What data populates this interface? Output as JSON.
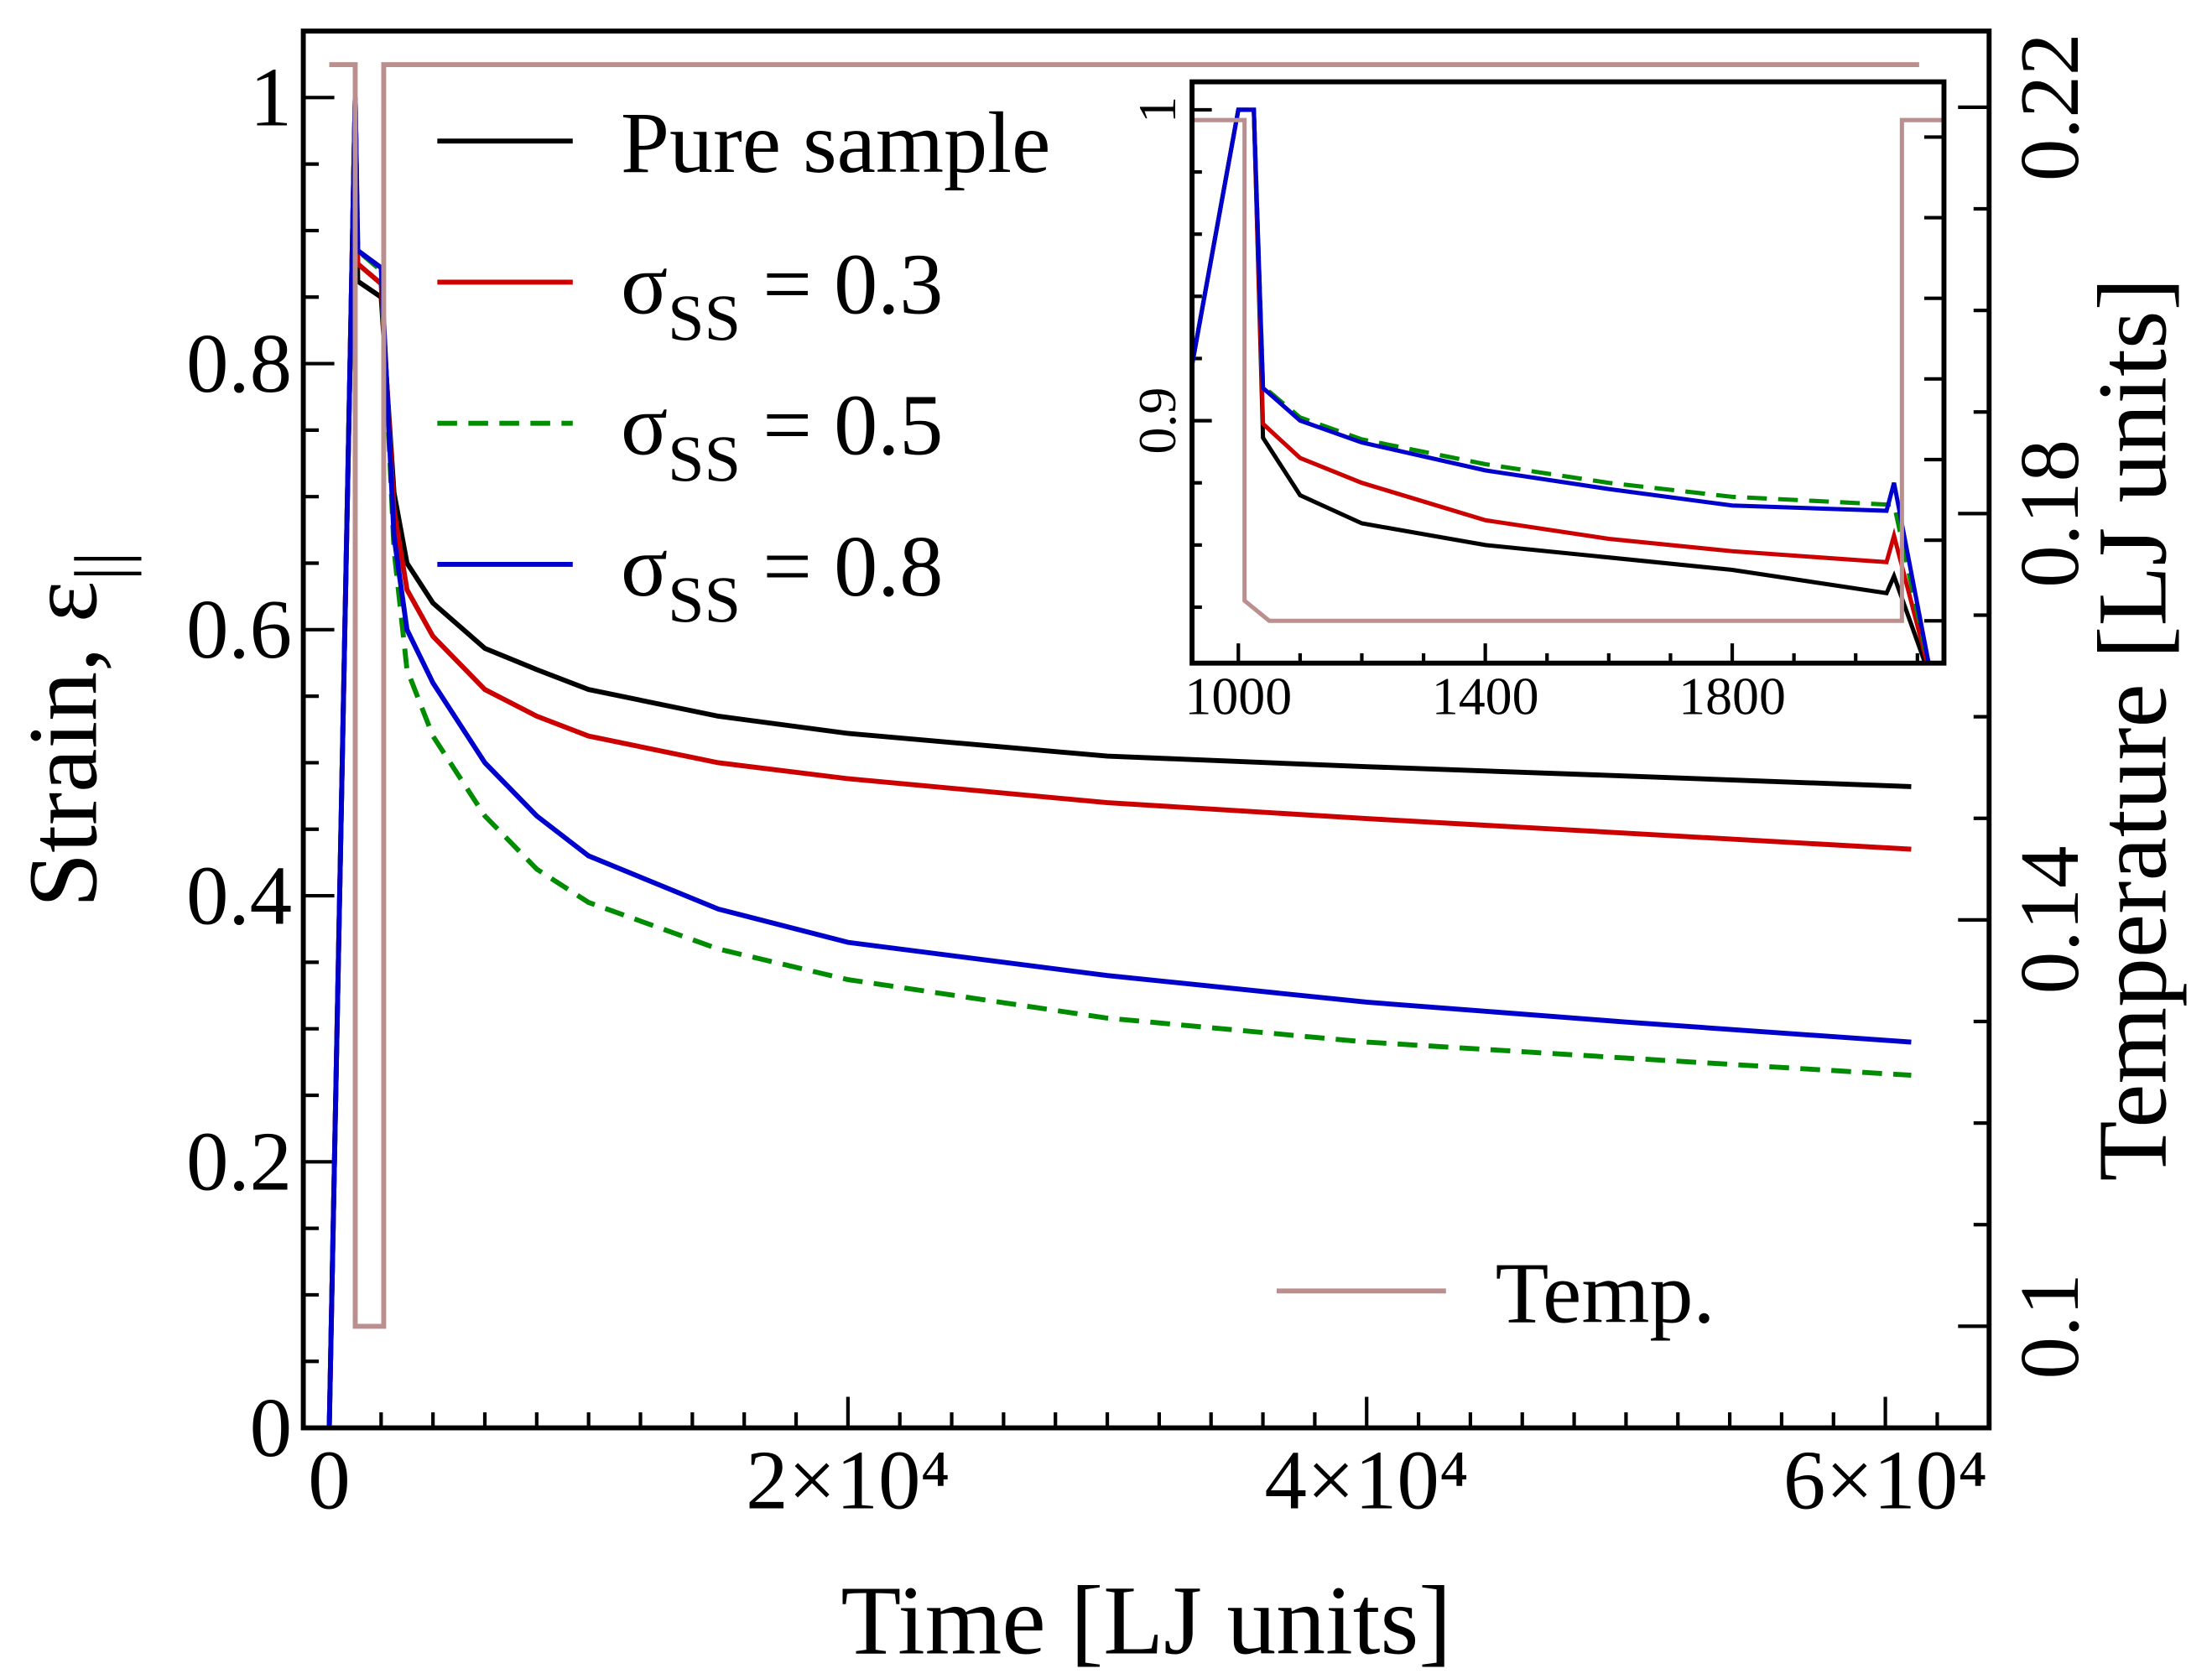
{
  "chart_data": [
    {
      "type": "line",
      "xlabel": "Time [LJ units]",
      "ylabel": "Strain, ε||",
      "y2label": "Temperature [LJ units]",
      "xlim": [
        -1000,
        64000
      ],
      "ylim": [
        0,
        1.05
      ],
      "y2lim": [
        0.09,
        0.2275
      ],
      "xticks": [
        0,
        {
          "value": 20000,
          "label": "2×10⁴"
        },
        {
          "value": 40000,
          "label": "4×10⁴"
        },
        {
          "value": 60000,
          "label": "6×10⁴"
        }
      ],
      "xticks_minor": [
        2000,
        4000,
        6000,
        8000,
        10000,
        12000,
        14000,
        16000,
        18000,
        22000,
        24000,
        26000,
        28000,
        30000,
        32000,
        34000,
        36000,
        38000,
        42000,
        44000,
        46000,
        48000,
        50000,
        52000,
        54000,
        56000,
        58000,
        62000
      ],
      "yticks": [
        0,
        0.2,
        0.4,
        0.6,
        0.8,
        1
      ],
      "yticks_minor": [
        0.05,
        0.1,
        0.15,
        0.25,
        0.3,
        0.35,
        0.45,
        0.5,
        0.55,
        0.65,
        0.7,
        0.75,
        0.85,
        0.9,
        0.95
      ],
      "y2ticks": [
        0.1,
        0.14,
        0.18,
        0.22
      ],
      "y2ticks_minor": [
        0.11,
        0.12,
        0.13,
        0.15,
        0.16,
        0.17,
        0.19,
        0.2,
        0.21
      ],
      "legend": "upper left",
      "x": [
        0,
        1000,
        1100,
        2000,
        2500,
        3000,
        4000,
        6000,
        8000,
        10000,
        15000,
        20000,
        30000,
        40000,
        50000,
        61000
      ],
      "series": [
        {
          "name": "Pure sample",
          "color": "#000000",
          "values": [
            0,
            1,
            0.862,
            0.85,
            0.703,
            0.65,
            0.62,
            0.586,
            0.57,
            0.555,
            0.535,
            0.522,
            0.505,
            0.497,
            0.49,
            0.482
          ]
        },
        {
          "name": "σSS = 0.3",
          "color": "#cc0000",
          "values": [
            0,
            1,
            0.875,
            0.86,
            0.69,
            0.63,
            0.595,
            0.555,
            0.535,
            0.52,
            0.5,
            0.488,
            0.47,
            0.458,
            0.447,
            0.435
          ]
        },
        {
          "name": "σSS = 0.5",
          "color": "#008c00",
          "dash": true,
          "values": [
            0,
            1,
            0.885,
            0.87,
            0.66,
            0.57,
            0.52,
            0.46,
            0.42,
            0.395,
            0.36,
            0.337,
            0.308,
            0.29,
            0.278,
            0.265
          ]
        },
        {
          "name": "σSS = 0.8",
          "color": "#0000cc",
          "values": [
            0,
            1,
            0.885,
            0.872,
            0.67,
            0.6,
            0.56,
            0.5,
            0.46,
            0.43,
            0.39,
            0.365,
            0.34,
            0.32,
            0.305,
            0.29
          ]
        },
        {
          "name": "Temp.",
          "color": "#bc8f8f",
          "axis": "y2",
          "x": [
            0,
            1000,
            1000,
            2100,
            2100,
            61300
          ],
          "values": [
            0.2242,
            0.2242,
            0.1,
            0.1,
            0.2242,
            0.2242
          ]
        }
      ]
    },
    {
      "type": "line",
      "xlim": [
        925,
        2143
      ],
      "ylim": [
        0.822,
        1.009
      ],
      "y2lim": [
        0.0895,
        0.2337
      ],
      "xticks": [
        1000,
        1400,
        1800
      ],
      "xticks_minor": [
        1100,
        1200,
        1300,
        1500,
        1600,
        1700,
        1900,
        2000,
        2100
      ],
      "yticks": [
        0.9,
        1
      ],
      "yticks_minor": [
        0.84,
        0.86,
        0.88,
        0.92,
        0.94,
        0.96,
        0.98
      ],
      "y2ticks_minor": [
        0.1,
        0.12,
        0.14,
        0.16,
        0.18,
        0.2,
        0.22
      ],
      "x": [
        925,
        1000,
        1025,
        1040,
        1100,
        1200,
        1400,
        1600,
        1800,
        2050,
        2062,
        2125
      ],
      "series": [
        {
          "color": "#000000",
          "values": [
            0.918,
            1,
            1,
            0.8945,
            0.876,
            0.867,
            0.86,
            0.856,
            0.852,
            0.8445,
            0.85,
            0.815
          ]
        },
        {
          "color": "#cc0000",
          "values": [
            0.918,
            1,
            1,
            0.899,
            0.888,
            0.88,
            0.868,
            0.862,
            0.858,
            0.8545,
            0.863,
            0.815
          ]
        },
        {
          "color": "#008c00",
          "dash": true,
          "values": [
            0.918,
            1,
            1,
            0.911,
            0.901,
            0.894,
            0.886,
            0.88,
            0.8755,
            0.873,
            0.873,
            0.815
          ]
        },
        {
          "color": "#0000cc",
          "values": [
            0.918,
            1,
            1,
            0.9105,
            0.9,
            0.893,
            0.884,
            0.878,
            0.8727,
            0.871,
            0.88,
            0.815
          ]
        },
        {
          "color": "#bc8f8f",
          "axis": "y2",
          "x": [
            925,
            1010,
            1010,
            1050,
            2075,
            2075,
            2143
          ],
          "values": [
            0.2242,
            0.2242,
            0.105,
            0.1,
            0.1,
            0.2242,
            0.2242
          ]
        }
      ]
    }
  ]
}
